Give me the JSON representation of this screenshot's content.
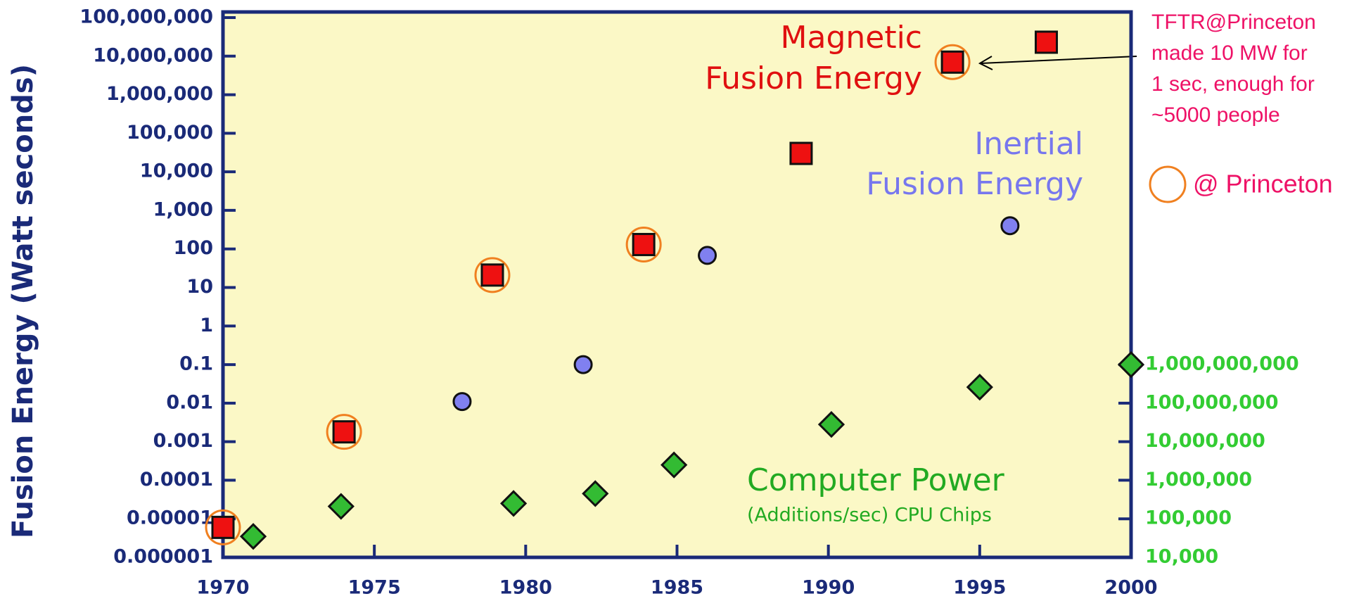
{
  "chart_data": {
    "type": "scatter",
    "ylabel": "Fusion Energy (Watt seconds)",
    "xlim": [
      1970,
      2000
    ],
    "xticks": [
      1970,
      1975,
      1980,
      1985,
      1990,
      1995,
      2000
    ],
    "ylim": [
      1e-06,
      100000000
    ],
    "ylog": true,
    "yticks": [
      1e-06,
      1e-05,
      0.0001,
      0.001,
      0.01,
      0.1,
      1,
      10,
      100,
      {
        "value": 1000,
        "label": "1,000"
      },
      {
        "value": 10000,
        "label": "10,000"
      },
      {
        "value": 100000,
        "label": "100,000"
      },
      {
        "value": 1000000,
        "label": "1,000,000"
      },
      {
        "value": 10000000,
        "label": "10,000,000"
      },
      {
        "value": 100000000,
        "label": "100,000,000"
      }
    ],
    "y2lim": [
      10000,
      1000000000000000000
    ],
    "y2log": true,
    "y2ticks": [
      {
        "value": 10000,
        "label": "10,000"
      },
      {
        "value": 100000,
        "label": "100,000"
      },
      {
        "value": 1000000,
        "label": "1,000,000"
      },
      {
        "value": 10000000,
        "label": "10,000,000"
      },
      {
        "value": 100000000,
        "label": "100,000,000"
      },
      {
        "value": 1000000000,
        "label": "1,000,000,000"
      }
    ],
    "series": [
      {
        "name": "Magnetic Fusion Energy",
        "marker": "square",
        "color": "#ee1111",
        "x": [
          1970,
          1974,
          1978.9,
          1983.9,
          1989.1,
          1994.1,
          1997.2
        ],
        "values": [
          6e-06,
          0.0018,
          21,
          130,
          30000,
          7000000,
          23000000
        ]
      },
      {
        "name": "Inertial Fusion Energy",
        "marker": "circle",
        "color": "#8080f0",
        "x": [
          1977.9,
          1981.9,
          1986.0,
          1996.0
        ],
        "values": [
          0.011,
          0.1,
          68,
          400
        ]
      },
      {
        "name": "Computer Power",
        "marker": "diamond",
        "color": "#33bb33",
        "axis": "y2",
        "x": [
          1971.0,
          1973.9,
          1979.6,
          1982.3,
          1984.9,
          1990.1,
          1995.0,
          2000
        ],
        "values": [
          35000,
          210000,
          250000,
          450000,
          2500000,
          28000000,
          260000000,
          1000000000
        ]
      },
      {
        "name": "@ Princeton",
        "marker": "ring",
        "color": "#f08020",
        "x": [
          1970,
          1974,
          1978.9,
          1983.9,
          1994.1
        ],
        "values": [
          6e-06,
          0.0018,
          21,
          130,
          7000000
        ]
      }
    ],
    "annotations": {
      "magnetic": [
        "Magnetic",
        "Fusion Energy"
      ],
      "inertial": [
        "Inertial",
        "Fusion Energy"
      ],
      "computer": "Computer Power",
      "computer_note": "(Additions/sec) CPU Chips",
      "tftr": [
        "TFTR@Princeton",
        "made 10 MW for",
        "1 sec, enough for",
        "~5000 people"
      ]
    }
  }
}
